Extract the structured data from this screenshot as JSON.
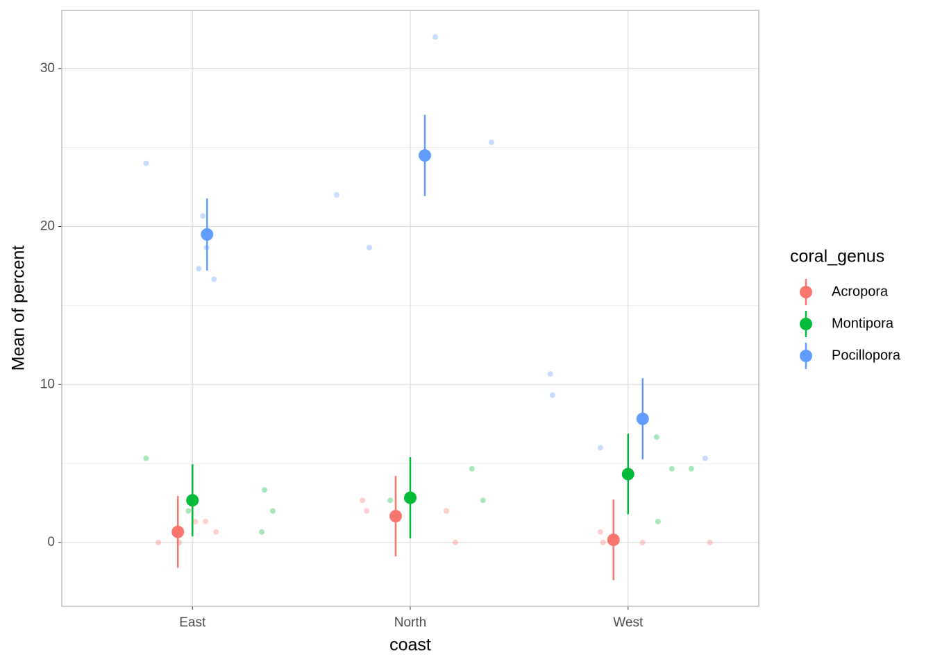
{
  "chart_data": {
    "type": "pointrange",
    "x_label": "coast",
    "y_label": "Mean of percent",
    "categories": [
      "East",
      "North",
      "West"
    ],
    "xlim": [
      0.4,
      3.6
    ],
    "ylim": [
      -4.04,
      33.68
    ],
    "yticks": [
      0,
      10,
      20,
      30
    ],
    "grid": true,
    "legend_title": "coral_genus",
    "legend_position": "right",
    "series": [
      {
        "name": "Acropora",
        "color": "#F8766D",
        "values": [
          0.67,
          1.67,
          0.17
        ],
        "errors": [
          2.27,
          2.55,
          2.55
        ],
        "points": {
          "x": [
            0.844,
            0.939,
            1.013,
            1.06,
            1.108,
            1.78,
            1.8,
            2.166,
            2.207,
            2.873,
            2.885,
            3.067,
            3.376
          ],
          "y": [
            0,
            0,
            1.33,
            1.33,
            0.67,
            2.67,
            2.0,
            2.0,
            0,
            0.67,
            0,
            0,
            0
          ]
        }
      },
      {
        "name": "Montipora",
        "color": "#00BA38",
        "values": [
          2.67,
          2.83,
          4.33
        ],
        "errors": [
          2.28,
          2.57,
          2.55
        ],
        "points": {
          "x": [
            0.787,
            0.981,
            1.318,
            1.331,
            1.369,
            1.908,
            2.283,
            2.334,
            3.131,
            3.137,
            3.201,
            3.29
          ],
          "y": [
            5.33,
            2.0,
            0.67,
            3.33,
            2.0,
            2.67,
            4.67,
            2.67,
            6.67,
            1.33,
            4.67,
            4.67
          ]
        }
      },
      {
        "name": "Pocillopora",
        "color": "#619CFF",
        "values": [
          19.5,
          24.5,
          7.83
        ],
        "errors": [
          2.28,
          2.57,
          2.57
        ],
        "points": {
          "x": [
            0.787,
            1.048,
            1.064,
            1.029,
            1.099,
            1.662,
            1.812,
            2.115,
            2.373,
            2.643,
            2.653,
            2.873,
            3.354
          ],
          "y": [
            24.0,
            20.67,
            18.67,
            17.33,
            16.67,
            22.0,
            18.67,
            32.0,
            25.33,
            10.67,
            9.33,
            6.0,
            5.33
          ]
        }
      }
    ]
  }
}
